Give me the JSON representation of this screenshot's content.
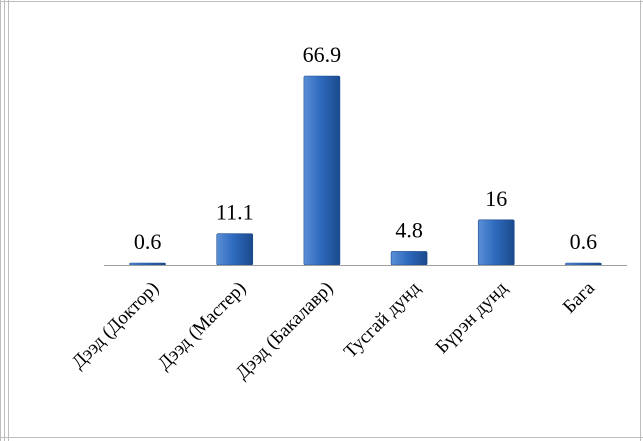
{
  "chart_data": {
    "type": "bar",
    "title": "",
    "xlabel": "",
    "ylabel": "",
    "categories": [
      "Дээд (Доктор)",
      "Дээд (Мастер)",
      "Дээд (Бакалавр)",
      "Тусгай дунд",
      "Бүрэн дунд",
      "Бага"
    ],
    "values": [
      0.6,
      11.1,
      66.9,
      4.8,
      16,
      0.6
    ],
    "data_labels": [
      "0.6",
      "11.1",
      "66.9",
      "4.8",
      "16",
      "0.6"
    ],
    "ylim": [
      0,
      66.9
    ],
    "grid": false,
    "legend": "none",
    "colors": {
      "bar_light": "#5b8fd6",
      "bar_mid": "#2f6bbf",
      "bar_dark": "#1b4a8c",
      "axis": "#9f9f9f",
      "text": "#000000"
    }
  }
}
